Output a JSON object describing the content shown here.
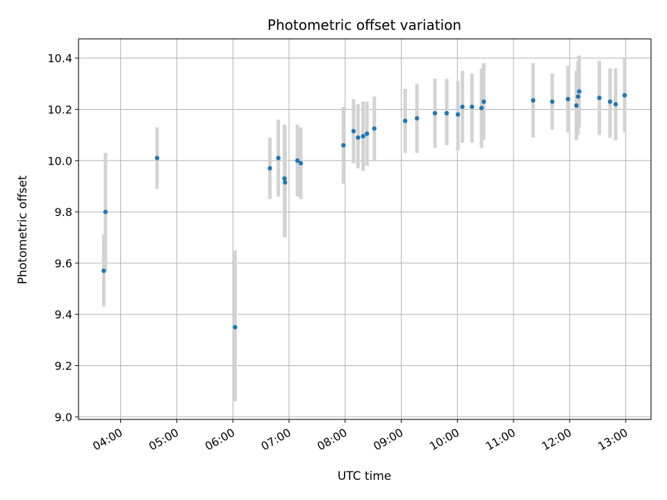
{
  "chart_data": {
    "type": "scatter",
    "title": "Photometric offset variation",
    "xlabel": "UTC time",
    "ylabel": "Photometric offset",
    "x_unit": "hours UTC",
    "xlim": [
      3.25,
      13.45
    ],
    "ylim": [
      8.99,
      10.475
    ],
    "x_ticks": [
      4,
      5,
      6,
      7,
      8,
      9,
      10,
      11,
      12,
      13
    ],
    "x_tick_labels": [
      "04:00",
      "05:00",
      "06:00",
      "07:00",
      "08:00",
      "09:00",
      "10:00",
      "11:00",
      "12:00",
      "13:00"
    ],
    "y_ticks": [
      9.0,
      9.2,
      9.4,
      9.6,
      9.8,
      10.0,
      10.2,
      10.4
    ],
    "y_tick_labels": [
      "9.0",
      "9.2",
      "9.4",
      "9.6",
      "9.8",
      "10.0",
      "10.2",
      "10.4"
    ],
    "grid": true,
    "colors": {
      "point": "#1f77b4",
      "errorbar": "#d3d3d3",
      "grid": "#b0b0b0"
    },
    "points": [
      {
        "x": 3.7,
        "y": 9.57,
        "lo": 9.43,
        "hi": 9.71
      },
      {
        "x": 3.73,
        "y": 9.8,
        "lo": 9.57,
        "hi": 10.03
      },
      {
        "x": 4.65,
        "y": 10.01,
        "lo": 9.89,
        "hi": 10.13
      },
      {
        "x": 6.04,
        "y": 9.35,
        "lo": 9.06,
        "hi": 9.65
      },
      {
        "x": 6.66,
        "y": 9.97,
        "lo": 9.85,
        "hi": 10.09
      },
      {
        "x": 6.81,
        "y": 10.01,
        "lo": 9.86,
        "hi": 10.16
      },
      {
        "x": 6.92,
        "y": 9.93,
        "lo": 9.7,
        "hi": 10.14
      },
      {
        "x": 6.93,
        "y": 9.915,
        "lo": 9.7,
        "hi": 10.13
      },
      {
        "x": 7.15,
        "y": 10.0,
        "lo": 9.86,
        "hi": 10.14
      },
      {
        "x": 7.21,
        "y": 9.99,
        "lo": 9.85,
        "hi": 10.13
      },
      {
        "x": 7.97,
        "y": 10.06,
        "lo": 9.91,
        "hi": 10.21
      },
      {
        "x": 8.15,
        "y": 10.115,
        "lo": 9.99,
        "hi": 10.24
      },
      {
        "x": 8.23,
        "y": 10.09,
        "lo": 9.97,
        "hi": 10.22
      },
      {
        "x": 8.32,
        "y": 10.095,
        "lo": 9.96,
        "hi": 10.23
      },
      {
        "x": 8.39,
        "y": 10.105,
        "lo": 9.98,
        "hi": 10.23
      },
      {
        "x": 8.52,
        "y": 10.125,
        "lo": 10.0,
        "hi": 10.25
      },
      {
        "x": 9.07,
        "y": 10.155,
        "lo": 10.03,
        "hi": 10.28
      },
      {
        "x": 9.28,
        "y": 10.165,
        "lo": 10.03,
        "hi": 10.3
      },
      {
        "x": 9.6,
        "y": 10.185,
        "lo": 10.05,
        "hi": 10.32
      },
      {
        "x": 9.81,
        "y": 10.185,
        "lo": 10.06,
        "hi": 10.32
      },
      {
        "x": 10.01,
        "y": 10.18,
        "lo": 10.04,
        "hi": 10.31
      },
      {
        "x": 10.09,
        "y": 10.21,
        "lo": 10.07,
        "hi": 10.35
      },
      {
        "x": 10.26,
        "y": 10.21,
        "lo": 10.07,
        "hi": 10.34
      },
      {
        "x": 10.43,
        "y": 10.205,
        "lo": 10.05,
        "hi": 10.36
      },
      {
        "x": 10.47,
        "y": 10.23,
        "lo": 10.08,
        "hi": 10.38
      },
      {
        "x": 11.35,
        "y": 10.235,
        "lo": 10.09,
        "hi": 10.38
      },
      {
        "x": 11.69,
        "y": 10.23,
        "lo": 10.12,
        "hi": 10.34
      },
      {
        "x": 11.97,
        "y": 10.24,
        "lo": 10.11,
        "hi": 10.37
      },
      {
        "x": 12.12,
        "y": 10.215,
        "lo": 10.08,
        "hi": 10.35
      },
      {
        "x": 12.15,
        "y": 10.25,
        "lo": 10.1,
        "hi": 10.39
      },
      {
        "x": 12.17,
        "y": 10.27,
        "lo": 10.13,
        "hi": 10.41
      },
      {
        "x": 12.53,
        "y": 10.245,
        "lo": 10.1,
        "hi": 10.39
      },
      {
        "x": 12.72,
        "y": 10.23,
        "lo": 10.09,
        "hi": 10.36
      },
      {
        "x": 12.82,
        "y": 10.22,
        "lo": 10.08,
        "hi": 10.36
      },
      {
        "x": 12.98,
        "y": 10.255,
        "lo": 10.11,
        "hi": 10.4
      }
    ]
  }
}
